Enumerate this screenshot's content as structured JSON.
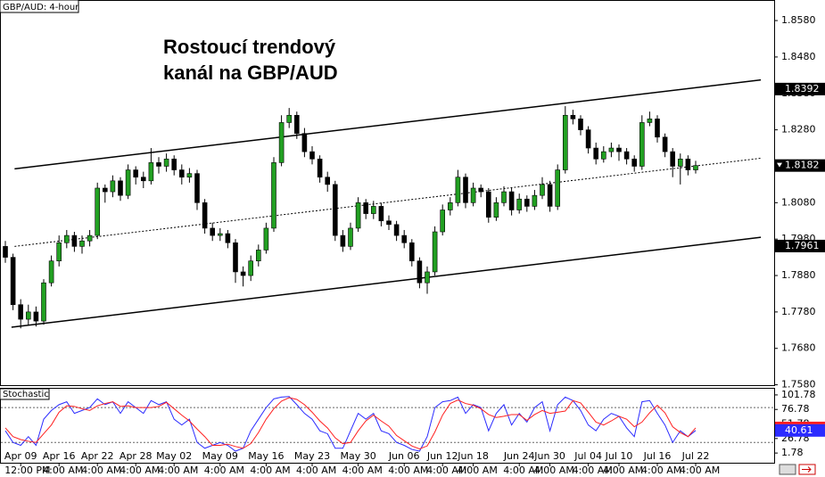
{
  "chart_data": {
    "type": "candlestick",
    "header": "GBP/AUD: 4-hour",
    "annotation": [
      "Rostoucí trendový",
      "kanál na GBP/AUD"
    ],
    "up_color": "#22a022",
    "down_color": "#000000",
    "categories": [
      null,
      null,
      "Apr 09",
      null,
      null,
      null,
      null,
      "Apr 16",
      null,
      null,
      null,
      null,
      "Apr 22",
      null,
      null,
      null,
      null,
      "Apr 28",
      null,
      null,
      null,
      null,
      "May 02",
      null,
      null,
      null,
      null,
      null,
      "May 09",
      null,
      null,
      null,
      null,
      null,
      "May 16",
      null,
      null,
      null,
      null,
      null,
      "May 23",
      null,
      null,
      null,
      null,
      null,
      "May 30",
      null,
      null,
      null,
      null,
      null,
      "Jun 06",
      null,
      null,
      null,
      null,
      "Jun 12",
      null,
      null,
      null,
      "Jun 18",
      null,
      null,
      null,
      null,
      null,
      "Jun 24",
      null,
      null,
      null,
      "Jun 30",
      null,
      null,
      null,
      null,
      "Jul 04",
      null,
      null,
      null,
      "Jul 10",
      null,
      null,
      null,
      null,
      "Jul 16",
      null,
      null,
      null,
      null,
      "Jul 22"
    ],
    "time_labels": [
      null,
      null,
      "12:00 PM",
      null,
      null,
      null,
      null,
      "4:00 AM",
      null,
      null,
      null,
      null,
      "4:00 AM",
      null,
      null,
      null,
      null,
      "4:00 AM",
      null,
      null,
      null,
      null,
      "4:00 AM",
      null,
      null,
      null,
      null,
      null,
      "4:00 AM",
      null,
      null,
      null,
      null,
      null,
      "4:00 AM",
      null,
      null,
      null,
      null,
      null,
      "4:00 AM",
      null,
      null,
      null,
      null,
      null,
      "4:00 AM",
      null,
      null,
      null,
      null,
      null,
      "4:00 AM",
      null,
      null,
      null,
      null,
      "4:00 AM",
      null,
      null,
      null,
      "4:00 AM",
      null,
      null,
      null,
      null,
      null,
      "4:00 AM",
      null,
      null,
      null,
      "4:00 AM",
      null,
      null,
      null,
      null,
      "4:00 AM",
      null,
      null,
      null,
      "4:00 AM",
      null,
      null,
      null,
      null,
      "4:00 AM",
      null,
      null,
      null,
      null,
      "4:00 AM"
    ],
    "candles": [
      [
        1.796,
        1.7975,
        1.7915,
        1.793
      ],
      [
        1.793,
        1.794,
        1.7785,
        1.78
      ],
      [
        1.78,
        1.7815,
        1.7735,
        1.776
      ],
      [
        1.776,
        1.78,
        1.7745,
        1.778
      ],
      [
        1.778,
        1.7795,
        1.774,
        1.7755
      ],
      [
        1.7755,
        1.787,
        1.7745,
        1.786
      ],
      [
        1.786,
        1.7935,
        1.785,
        1.792
      ],
      [
        1.792,
        1.799,
        1.7905,
        1.797
      ],
      [
        1.797,
        1.8005,
        1.7955,
        1.799
      ],
      [
        1.799,
        1.8,
        1.7945,
        1.796
      ],
      [
        1.796,
        1.799,
        1.794,
        1.7975
      ],
      [
        1.7975,
        1.8005,
        1.796,
        1.799
      ],
      [
        1.799,
        1.8135,
        1.798,
        1.812
      ],
      [
        1.812,
        1.813,
        1.808,
        1.811
      ],
      [
        1.811,
        1.8155,
        1.8095,
        1.814
      ],
      [
        1.814,
        1.815,
        1.8085,
        1.81
      ],
      [
        1.81,
        1.8185,
        1.809,
        1.817
      ],
      [
        1.817,
        1.818,
        1.813,
        1.815
      ],
      [
        1.815,
        1.8165,
        1.812,
        1.814
      ],
      [
        1.814,
        1.823,
        1.813,
        1.819
      ],
      [
        1.819,
        1.8205,
        1.816,
        1.818
      ],
      [
        1.818,
        1.8215,
        1.8165,
        1.82
      ],
      [
        1.82,
        1.821,
        1.8155,
        1.817
      ],
      [
        1.817,
        1.8185,
        1.813,
        1.815
      ],
      [
        1.815,
        1.8175,
        1.8135,
        1.816
      ],
      [
        1.816,
        1.817,
        1.806,
        1.808
      ],
      [
        1.808,
        1.809,
        1.7995,
        1.801
      ],
      [
        1.801,
        1.8025,
        1.7975,
        1.799
      ],
      [
        1.799,
        1.801,
        1.7975,
        1.7995
      ],
      [
        1.7995,
        1.8005,
        1.7955,
        1.797
      ],
      [
        1.797,
        1.798,
        1.786,
        1.789
      ],
      [
        1.789,
        1.7905,
        1.785,
        1.788
      ],
      [
        1.788,
        1.7935,
        1.7865,
        1.792
      ],
      [
        1.792,
        1.7965,
        1.7905,
        1.795
      ],
      [
        1.795,
        1.8025,
        1.794,
        1.801
      ],
      [
        1.801,
        1.8205,
        1.8,
        1.819
      ],
      [
        1.819,
        1.832,
        1.818,
        1.83
      ],
      [
        1.83,
        1.834,
        1.8285,
        1.832
      ],
      [
        1.832,
        1.833,
        1.8255,
        1.827
      ],
      [
        1.827,
        1.8285,
        1.8205,
        1.822
      ],
      [
        1.822,
        1.8235,
        1.8185,
        1.82
      ],
      [
        1.82,
        1.821,
        1.8135,
        1.815
      ],
      [
        1.815,
        1.8165,
        1.811,
        1.813
      ],
      [
        1.813,
        1.814,
        1.7975,
        1.799
      ],
      [
        1.799,
        1.8005,
        1.7945,
        1.796
      ],
      [
        1.796,
        1.8025,
        1.795,
        1.801
      ],
      [
        1.801,
        1.8095,
        1.8,
        1.808
      ],
      [
        1.808,
        1.809,
        1.8035,
        1.805
      ],
      [
        1.805,
        1.8085,
        1.8035,
        1.807
      ],
      [
        1.807,
        1.808,
        1.8015,
        1.803
      ],
      [
        1.803,
        1.8045,
        1.8005,
        1.802
      ],
      [
        1.802,
        1.803,
        1.7975,
        1.799
      ],
      [
        1.799,
        1.8005,
        1.7955,
        1.797
      ],
      [
        1.797,
        1.798,
        1.7905,
        1.792
      ],
      [
        1.792,
        1.793,
        1.7845,
        1.786
      ],
      [
        1.786,
        1.7905,
        1.783,
        1.789
      ],
      [
        1.789,
        1.8015,
        1.788,
        1.8
      ],
      [
        1.8,
        1.8075,
        1.799,
        1.806
      ],
      [
        1.806,
        1.8095,
        1.8045,
        1.808
      ],
      [
        1.808,
        1.817,
        1.807,
        1.815
      ],
      [
        1.815,
        1.816,
        1.8065,
        1.808
      ],
      [
        1.808,
        1.8135,
        1.807,
        1.812
      ],
      [
        1.812,
        1.813,
        1.8095,
        1.811
      ],
      [
        1.811,
        1.812,
        1.8025,
        1.804
      ],
      [
        1.804,
        1.8095,
        1.803,
        1.808
      ],
      [
        1.808,
        1.8125,
        1.807,
        1.811
      ],
      [
        1.811,
        1.812,
        1.8045,
        1.806
      ],
      [
        1.806,
        1.8105,
        1.805,
        1.809
      ],
      [
        1.809,
        1.81,
        1.8055,
        1.807
      ],
      [
        1.807,
        1.8115,
        1.806,
        1.81
      ],
      [
        1.81,
        1.815,
        1.809,
        1.813
      ],
      [
        1.813,
        1.814,
        1.8055,
        1.807
      ],
      [
        1.807,
        1.8185,
        1.806,
        1.817
      ],
      [
        1.817,
        1.8345,
        1.816,
        1.832
      ],
      [
        1.832,
        1.8335,
        1.8295,
        1.831
      ],
      [
        1.831,
        1.832,
        1.8265,
        1.828
      ],
      [
        1.828,
        1.829,
        1.8215,
        1.823
      ],
      [
        1.823,
        1.8245,
        1.8185,
        1.82
      ],
      [
        1.82,
        1.8235,
        1.819,
        1.822
      ],
      [
        1.822,
        1.8245,
        1.8205,
        1.823
      ],
      [
        1.823,
        1.824,
        1.8195,
        1.822
      ],
      [
        1.822,
        1.823,
        1.8185,
        1.82
      ],
      [
        1.82,
        1.821,
        1.8165,
        1.818
      ],
      [
        1.818,
        1.832,
        1.817,
        1.83
      ],
      [
        1.83,
        1.833,
        1.829,
        1.831
      ],
      [
        1.831,
        1.832,
        1.8245,
        1.826
      ],
      [
        1.826,
        1.827,
        1.8205,
        1.822
      ],
      [
        1.822,
        1.823,
        1.815,
        1.818
      ],
      [
        1.818,
        1.8215,
        1.813,
        1.82
      ],
      [
        1.82,
        1.821,
        1.8155,
        1.817
      ],
      [
        1.817,
        1.8195,
        1.816,
        1.8182
      ]
    ],
    "ylim": [
      1.7579,
      1.8634
    ],
    "yticks": [
      {
        "value": 1.858,
        "label": "1.8580"
      },
      {
        "value": 1.848,
        "label": "1.8480"
      },
      {
        "value": 1.838,
        "label": "1.8380"
      },
      {
        "value": 1.828,
        "label": "1.8280"
      },
      {
        "value": 1.818,
        "label": "1.8180"
      },
      {
        "value": 1.808,
        "label": "1.8080"
      },
      {
        "value": 1.798,
        "label": "1.7980"
      },
      {
        "value": 1.788,
        "label": "1.7880"
      },
      {
        "value": 1.778,
        "label": "1.7780"
      },
      {
        "value": 1.768,
        "label": "1.7680"
      },
      {
        "value": 1.758,
        "label": "1.7580"
      }
    ],
    "trendlines": [
      {
        "style": "solid",
        "x": [
          1.2,
          98.5
        ],
        "y": [
          1.8173,
          1.8417
        ]
      },
      {
        "style": "solid",
        "x": [
          0.8,
          98.5
        ],
        "y": [
          1.7738,
          1.7985
        ]
      },
      {
        "style": "dashed",
        "x": [
          1.2,
          98.5
        ],
        "y": [
          1.796,
          1.8202
        ]
      }
    ],
    "price_markers": [
      1.8392,
      1.7961
    ],
    "indicator": {
      "name": "Stochastic",
      "ylim": [
        -14.9,
        112.4
      ],
      "yticks": [
        101.78,
        76.78,
        51.78,
        26.78,
        1.78
      ],
      "levels": [
        80,
        20
      ],
      "series": [
        {
          "color": "#2b2bff",
          "values": [
            40,
            20,
            15,
            30,
            15,
            60,
            75,
            85,
            90,
            70,
            75,
            80,
            95,
            85,
            90,
            70,
            90,
            80,
            70,
            92,
            85,
            90,
            60,
            50,
            60,
            20,
            10,
            15,
            20,
            15,
            5,
            10,
            40,
            60,
            80,
            95,
            98,
            99,
            85,
            70,
            60,
            40,
            35,
            10,
            10,
            40,
            70,
            60,
            70,
            40,
            35,
            20,
            15,
            8,
            5,
            30,
            80,
            90,
            92,
            98,
            70,
            85,
            80,
            40,
            70,
            85,
            50,
            70,
            55,
            80,
            90,
            40,
            85,
            98,
            92,
            75,
            50,
            40,
            60,
            70,
            65,
            45,
            30,
            90,
            92,
            70,
            50,
            20,
            40,
            30,
            40.61
          ]
        },
        {
          "color": "#ff2020",
          "values": [
            45,
            30,
            25,
            22,
            20,
            35,
            50,
            72,
            83,
            82,
            78,
            75,
            83,
            87,
            90,
            82,
            83,
            80,
            80,
            80,
            82,
            89,
            78,
            67,
            57,
            43,
            30,
            15,
            15,
            17,
            13,
            10,
            18,
            37,
            60,
            78,
            91,
            97,
            94,
            85,
            72,
            57,
            45,
            28,
            18,
            20,
            40,
            57,
            67,
            57,
            48,
            32,
            23,
            14,
            9,
            14,
            38,
            67,
            87,
            93,
            87,
            84,
            78,
            68,
            63,
            65,
            68,
            68,
            58,
            68,
            75,
            70,
            72,
            74,
            92,
            88,
            72,
            55,
            50,
            57,
            65,
            60,
            47,
            55,
            71,
            84,
            71,
            47,
            37,
            30,
            45
          ]
        }
      ]
    }
  }
}
